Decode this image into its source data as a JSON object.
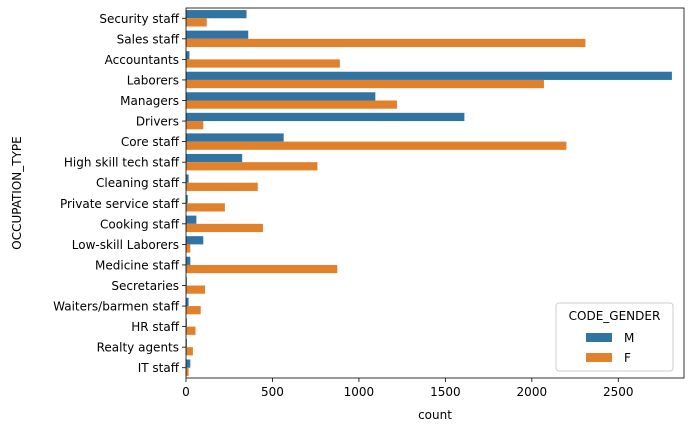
{
  "chart_data": {
    "type": "bar",
    "orientation": "horizontal",
    "categories": [
      "Security staff",
      "Sales staff",
      "Accountants",
      "Laborers",
      "Managers",
      "Drivers",
      "Core staff",
      "High skill tech staff",
      "Cleaning staff",
      "Private service staff",
      "Cooking staff",
      "Low-skill Laborers",
      "Medicine staff",
      "Secretaries",
      "Waiters/barmen staff",
      "HR staff",
      "Realty agents",
      "IT staff"
    ],
    "series": [
      {
        "name": "M",
        "color": "#3274a1",
        "values": [
          350,
          360,
          20,
          2810,
          1095,
          1610,
          565,
          325,
          15,
          10,
          60,
          100,
          25,
          5,
          15,
          5,
          5,
          25
        ]
      },
      {
        "name": "F",
        "color": "#e1812c",
        "values": [
          120,
          2310,
          890,
          2070,
          1220,
          100,
          2200,
          760,
          415,
          225,
          445,
          25,
          875,
          110,
          85,
          55,
          40,
          15
        ]
      }
    ],
    "xlabel": "count",
    "ylabel": "OCCUPATION_TYPE",
    "xlim": [
      0,
      2880
    ],
    "xticks": [
      0,
      500,
      1000,
      1500,
      2000,
      2500
    ],
    "grid": false,
    "legend": {
      "title": "CODE_GENDER",
      "placement": "lower-right"
    }
  }
}
